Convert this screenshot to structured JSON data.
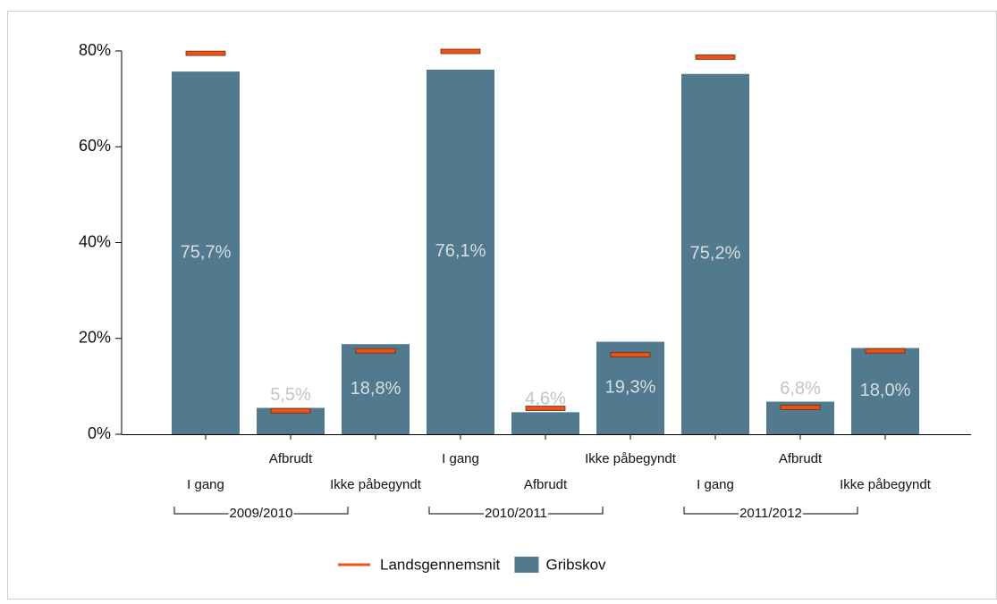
{
  "chart_data": {
    "type": "bar",
    "categories": [
      "I gang",
      "Afbrudt",
      "Ikke påbegyndt",
      "I gang",
      "Afbrudt",
      "Ikke påbegyndt",
      "I gang",
      "Afbrudt",
      "Ikke påbegyndt"
    ],
    "groups": [
      "2009/2010",
      "2010/2011",
      "2011/2012"
    ],
    "series": [
      {
        "name": "Landsgennemsnit",
        "color": "#e8531a",
        "kind": "marker",
        "values": [
          79.5,
          4.9,
          17.4,
          79.9,
          5.4,
          16.6,
          78.7,
          5.6,
          17.4
        ]
      },
      {
        "name": "Gribskov",
        "color": "#527a8e",
        "kind": "bar",
        "values": [
          75.7,
          5.5,
          18.8,
          76.1,
          4.6,
          19.3,
          75.2,
          6.8,
          18.0
        ],
        "value_labels": [
          "75,7%",
          "5,5%",
          "18,8%",
          "76,1%",
          "4,6%",
          "19,3%",
          "75,2%",
          "6,8%",
          "18,0%"
        ]
      }
    ],
    "ylim": [
      0,
      80
    ],
    "yticks": [
      {
        "value": 0,
        "label": "0%"
      },
      {
        "value": 20,
        "label": "20%"
      },
      {
        "value": 40,
        "label": "40%"
      },
      {
        "value": 60,
        "label": "60%"
      },
      {
        "value": 80,
        "label": "80%"
      }
    ],
    "legend": "bottom"
  }
}
